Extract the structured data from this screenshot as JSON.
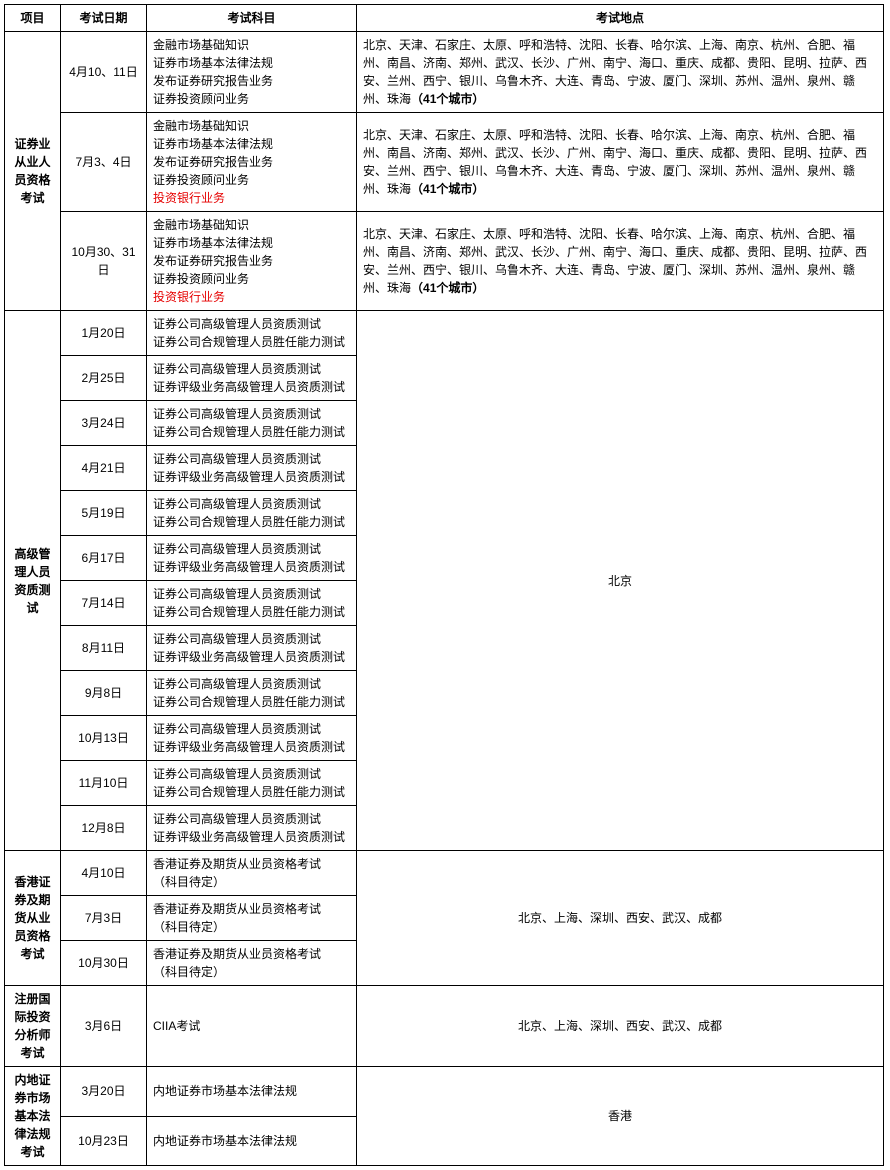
{
  "headers": {
    "project": "项目",
    "date": "考试日期",
    "subject": "考试科目",
    "location": "考试地点"
  },
  "cities41": "北京、天津、石家庄、太原、呼和浩特、沈阳、长春、哈尔滨、上海、南京、杭州、合肥、福州、南昌、济南、郑州、武汉、长沙、广州、南宁、海口、重庆、成都、贵阳、昆明、拉萨、西安、兰州、西宁、银川、乌鲁木齐、大连、青岛、宁波、厦门、深圳、苏州、温州、泉州、赣州、珠海",
  "cities41_suffix": "（41个城市）",
  "groups": [
    {
      "project": "证券业从业人员资格考试",
      "location_mode": "per_row",
      "rows": [
        {
          "date": "4月10、11日",
          "subjects": [
            {
              "t": "金融市场基础知识"
            },
            {
              "t": "证券市场基本法律法规"
            },
            {
              "t": "发布证券研究报告业务"
            },
            {
              "t": "证券投资顾问业务"
            }
          ],
          "location_kind": "cities41"
        },
        {
          "date": "7月3、4日",
          "subjects": [
            {
              "t": "金融市场基础知识"
            },
            {
              "t": "证券市场基本法律法规"
            },
            {
              "t": "发布证券研究报告业务"
            },
            {
              "t": "证券投资顾问业务"
            },
            {
              "t": "投资银行业务",
              "red": true
            }
          ],
          "location_kind": "cities41"
        },
        {
          "date": "10月30、31日",
          "subjects": [
            {
              "t": "金融市场基础知识"
            },
            {
              "t": "证券市场基本法律法规"
            },
            {
              "t": "发布证券研究报告业务"
            },
            {
              "t": "证券投资顾问业务"
            },
            {
              "t": "投资银行业务",
              "red": true
            }
          ],
          "location_kind": "cities41"
        }
      ]
    },
    {
      "project": "高级管理人员资质测试",
      "location_mode": "merged",
      "location_text": "北京",
      "rows": [
        {
          "date": "1月20日",
          "subjects": [
            {
              "t": "证券公司高级管理人员资质测试"
            },
            {
              "t": "证券公司合规管理人员胜任能力测试"
            }
          ]
        },
        {
          "date": "2月25日",
          "subjects": [
            {
              "t": "证券公司高级管理人员资质测试"
            },
            {
              "t": "证券评级业务高级管理人员资质测试"
            }
          ]
        },
        {
          "date": "3月24日",
          "subjects": [
            {
              "t": "证券公司高级管理人员资质测试"
            },
            {
              "t": "证券公司合规管理人员胜任能力测试"
            }
          ]
        },
        {
          "date": "4月21日",
          "subjects": [
            {
              "t": "证券公司高级管理人员资质测试"
            },
            {
              "t": "证券评级业务高级管理人员资质测试"
            }
          ]
        },
        {
          "date": "5月19日",
          "subjects": [
            {
              "t": "证券公司高级管理人员资质测试"
            },
            {
              "t": "证券公司合规管理人员胜任能力测试"
            }
          ]
        },
        {
          "date": "6月17日",
          "subjects": [
            {
              "t": "证券公司高级管理人员资质测试"
            },
            {
              "t": "证券评级业务高级管理人员资质测试"
            }
          ]
        },
        {
          "date": "7月14日",
          "subjects": [
            {
              "t": "证券公司高级管理人员资质测试"
            },
            {
              "t": "证券公司合规管理人员胜任能力测试"
            }
          ]
        },
        {
          "date": "8月11日",
          "subjects": [
            {
              "t": "证券公司高级管理人员资质测试"
            },
            {
              "t": "证券评级业务高级管理人员资质测试"
            }
          ]
        },
        {
          "date": "9月8日",
          "subjects": [
            {
              "t": "证券公司高级管理人员资质测试"
            },
            {
              "t": "证券公司合规管理人员胜任能力测试"
            }
          ]
        },
        {
          "date": "10月13日",
          "subjects": [
            {
              "t": "证券公司高级管理人员资质测试"
            },
            {
              "t": "证券评级业务高级管理人员资质测试"
            }
          ]
        },
        {
          "date": "11月10日",
          "subjects": [
            {
              "t": "证券公司高级管理人员资质测试"
            },
            {
              "t": "证券公司合规管理人员胜任能力测试"
            }
          ]
        },
        {
          "date": "12月8日",
          "subjects": [
            {
              "t": "证券公司高级管理人员资质测试"
            },
            {
              "t": "证券评级业务高级管理人员资质测试"
            }
          ]
        }
      ]
    },
    {
      "project": "香港证券及期货从业员资格考试",
      "location_mode": "merged",
      "location_text": "北京、上海、深圳、西安、武汉、成都",
      "rows": [
        {
          "date": "4月10日",
          "subjects": [
            {
              "t": "香港证券及期货从业员资格考试"
            },
            {
              "t": "（科目待定）"
            }
          ]
        },
        {
          "date": "7月3日",
          "subjects": [
            {
              "t": "香港证券及期货从业员资格考试"
            },
            {
              "t": "（科目待定）"
            }
          ]
        },
        {
          "date": "10月30日",
          "subjects": [
            {
              "t": "香港证券及期货从业员资格考试"
            },
            {
              "t": "（科目待定）"
            }
          ]
        }
      ]
    },
    {
      "project": "注册国际投资分析师考试",
      "location_mode": "merged",
      "location_text": "北京、上海、深圳、西安、武汉、成都",
      "rows": [
        {
          "date": "3月6日",
          "subjects": [
            {
              "t": "CIIA考试"
            }
          ]
        }
      ]
    },
    {
      "project": "内地证券市场基本法律法规考试",
      "location_mode": "merged",
      "location_text": "香港",
      "rows": [
        {
          "date": "3月20日",
          "subjects": [
            {
              "t": "内地证券市场基本法律法规"
            }
          ]
        },
        {
          "date": "10月23日",
          "subjects": [
            {
              "t": "内地证券市场基本法律法规"
            }
          ]
        }
      ]
    }
  ]
}
